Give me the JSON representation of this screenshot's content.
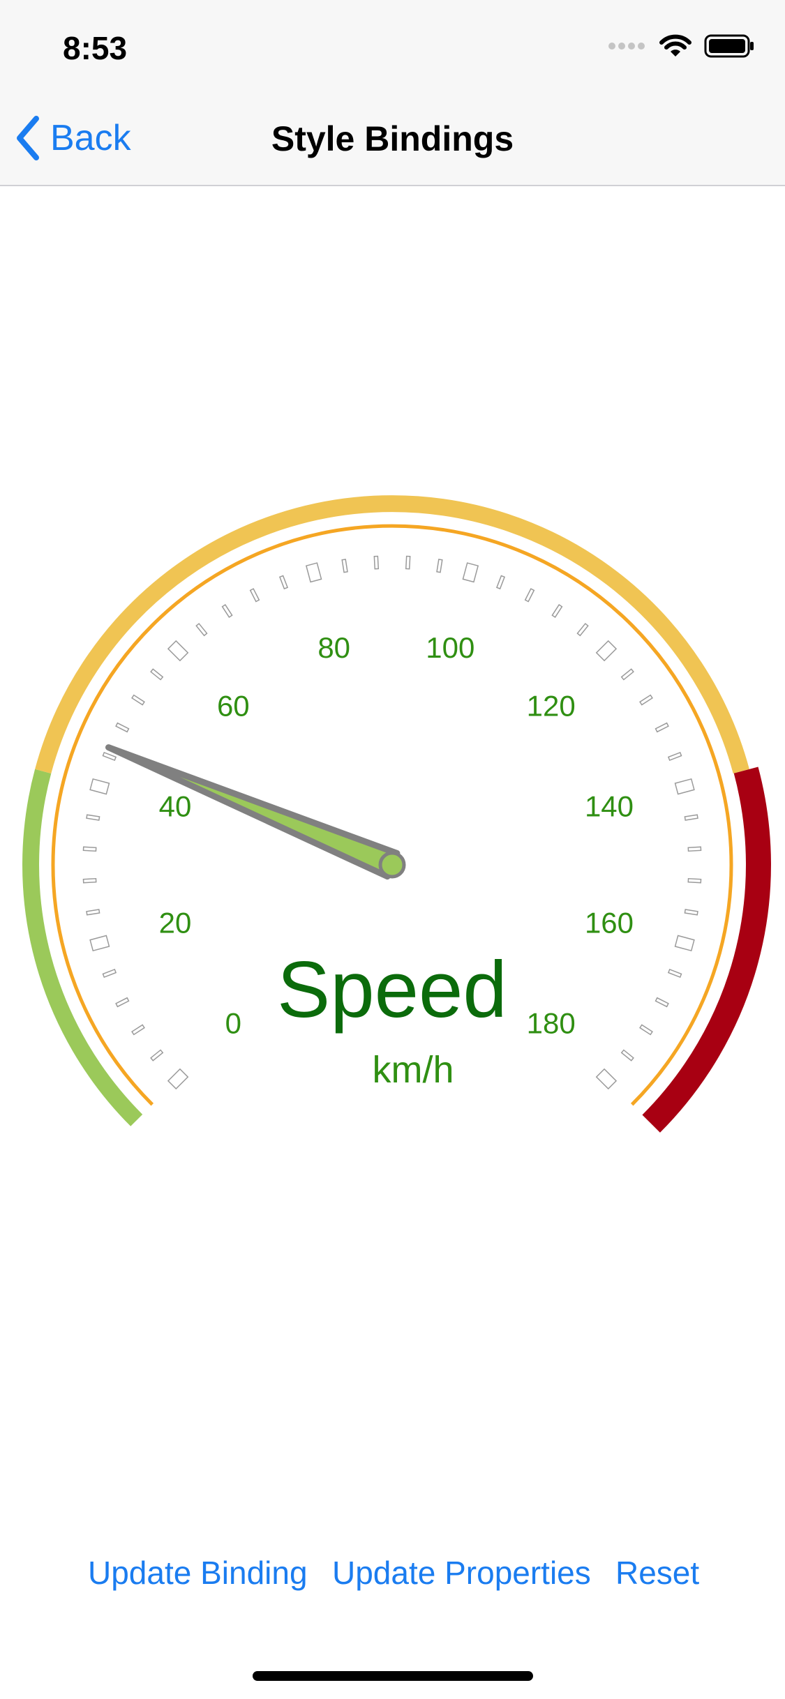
{
  "status_bar": {
    "time": "8:53",
    "icons": [
      "cellular-signal-icon",
      "wifi-icon",
      "battery-icon"
    ]
  },
  "nav": {
    "back_label": "Back",
    "title": "Style Bindings"
  },
  "gauge": {
    "min": 0,
    "max": 180,
    "value": 45,
    "major_step": 20,
    "tick_labels": [
      "0",
      "20",
      "40",
      "60",
      "80",
      "100",
      "120",
      "140",
      "160",
      "180"
    ],
    "title": "Speed",
    "units": "km/h",
    "ranges": [
      {
        "from": 0,
        "to": 40,
        "color": "#9bc95a"
      },
      {
        "from": 40,
        "to": 140,
        "color": "#f0c453"
      },
      {
        "from": 140,
        "to": 180,
        "color": "#a80012"
      }
    ],
    "colors": {
      "labels": "#2f8f12",
      "title": "#0b6b0b",
      "needle": "#9bc95a",
      "needle_border": "#808080",
      "face_border": "#f5a623"
    }
  },
  "toolbar": {
    "update_binding": "Update Binding",
    "update_properties": "Update Properties",
    "reset": "Reset"
  }
}
